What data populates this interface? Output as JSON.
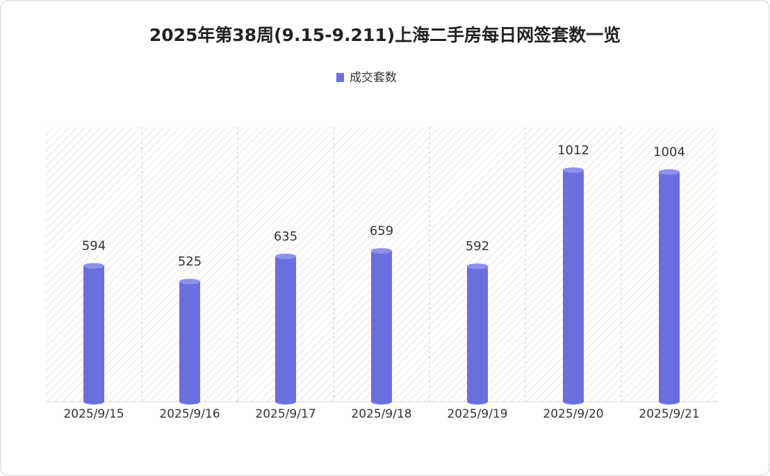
{
  "chart_data": {
    "type": "bar",
    "title": "2025年第38周(9.15-9.211)上海二手房每日网签套数一览",
    "categories": [
      "2025/9/15",
      "2025/9/16",
      "2025/9/17",
      "2025/9/18",
      "2025/9/19",
      "2025/9/20",
      "2025/9/21"
    ],
    "series": [
      {
        "name": "成交套数",
        "color": "#6a6fe0",
        "values": [
          594,
          525,
          635,
          659,
          592,
          1012,
          1004
        ]
      }
    ],
    "ylim": [
      0,
      1200
    ],
    "legend": "top"
  }
}
